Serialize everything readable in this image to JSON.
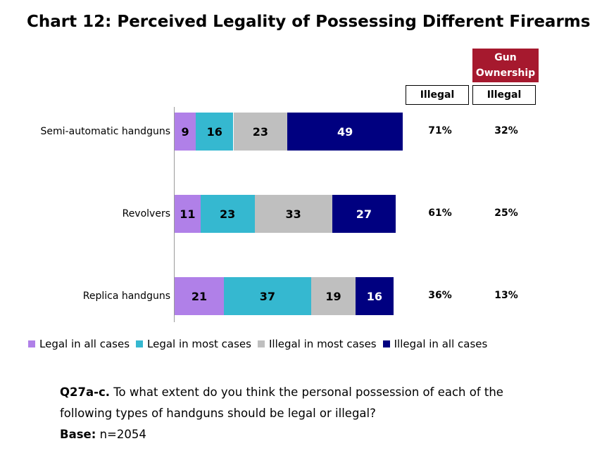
{
  "title": "Chart 12: Perceived Legality of Possessing Different Firearms",
  "columns": {
    "col1_header": "Illegal",
    "col2_badge": "Gun Ownership",
    "col2_header": "Illegal"
  },
  "colors": {
    "legal_all": "#b080e8",
    "legal_most": "#35b8d0",
    "illegal_most": "#bfbfbf",
    "illegal_all": "#000080",
    "badge": "#a6192e"
  },
  "chart_data": {
    "type": "bar",
    "orientation": "horizontal",
    "stacked": true,
    "title": "Chart 12: Perceived Legality of Possessing Different Firearms",
    "categories": [
      "Semi-automatic handguns",
      "Revolvers",
      "Replica handguns"
    ],
    "series": [
      {
        "name": "Legal in all cases",
        "values": [
          9,
          11,
          21
        ]
      },
      {
        "name": "Legal in most cases",
        "values": [
          16,
          23,
          37
        ]
      },
      {
        "name": "Illegal in most cases",
        "values": [
          23,
          33,
          19
        ]
      },
      {
        "name": "Illegal in all cases",
        "values": [
          49,
          27,
          16
        ]
      }
    ],
    "illegal_total": [
      "71%",
      "61%",
      "36%"
    ],
    "gun_ownership_illegal": [
      "32%",
      "25%",
      "13%"
    ],
    "legend_position": "bottom",
    "grid": false
  },
  "footnote": {
    "question_label": "Q27a-c.",
    "question_line1": " To what extent do you think the personal possession of each of the",
    "question_line2": "following types of handguns should be legal or illegal?",
    "base_label": "Base:",
    "base_value": " n=2054"
  }
}
